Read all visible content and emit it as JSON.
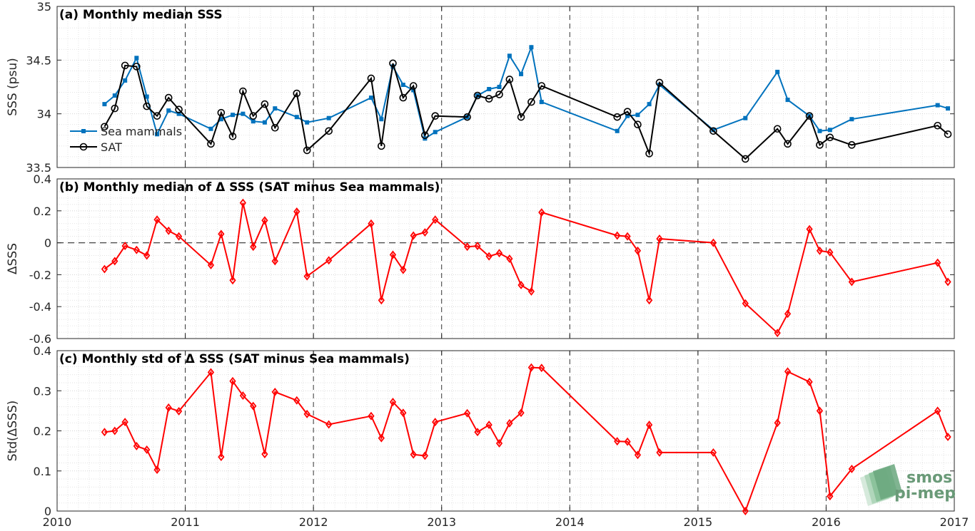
{
  "chart_data": [
    {
      "type": "line",
      "title": "(a) Monthly median SSS",
      "ylabel": "SSS (psu)",
      "xlabel": "",
      "xlim": [
        2010,
        2017
      ],
      "ylim": [
        33.5,
        35
      ],
      "yticks": [
        33.5,
        34,
        34.5,
        35
      ],
      "ytick_labels": [
        "33.5",
        "34",
        "34.5",
        "35"
      ],
      "grid": true,
      "legend_position": "left",
      "series": [
        {
          "name": "Sea mammals",
          "color": "#0072BD",
          "marker": "square",
          "x": [
            2010.37,
            2010.45,
            2010.53,
            2010.62,
            2010.7,
            2010.78,
            2010.87,
            2010.95,
            2011.2,
            2011.28,
            2011.37,
            2011.45,
            2011.53,
            2011.62,
            2011.7,
            2011.87,
            2011.95,
            2012.12,
            2012.45,
            2012.53,
            2012.62,
            2012.7,
            2012.78,
            2012.87,
            2012.95,
            2013.2,
            2013.28,
            2013.37,
            2013.45,
            2013.53,
            2013.62,
            2013.7,
            2013.78,
            2014.37,
            2014.45,
            2014.53,
            2014.62,
            2014.7,
            2015.12,
            2015.37,
            2015.62,
            2015.7,
            2015.87,
            2015.95,
            2016.03,
            2016.2,
            2016.87,
            2016.95
          ],
          "y": [
            34.09,
            34.17,
            34.31,
            34.52,
            34.16,
            33.81,
            34.03,
            34.0,
            33.86,
            33.95,
            33.99,
            34.0,
            33.93,
            33.92,
            34.05,
            33.97,
            33.92,
            33.96,
            34.15,
            33.95,
            34.44,
            34.27,
            34.22,
            33.77,
            33.83,
            33.97,
            34.17,
            34.23,
            34.25,
            34.54,
            34.37,
            34.62,
            34.11,
            33.84,
            33.98,
            33.99,
            34.09,
            34.27,
            33.85,
            33.96,
            34.39,
            34.13,
            33.98,
            33.84,
            33.85,
            33.95,
            34.08,
            34.05
          ]
        },
        {
          "name": "SAT",
          "color": "#000000",
          "marker": "circle",
          "x": [
            2010.37,
            2010.45,
            2010.53,
            2010.62,
            2010.7,
            2010.78,
            2010.87,
            2010.95,
            2011.2,
            2011.28,
            2011.37,
            2011.45,
            2011.53,
            2011.62,
            2011.7,
            2011.87,
            2011.95,
            2012.12,
            2012.45,
            2012.53,
            2012.62,
            2012.7,
            2012.78,
            2012.87,
            2012.95,
            2013.2,
            2013.28,
            2013.37,
            2013.45,
            2013.53,
            2013.62,
            2013.7,
            2013.78,
            2014.37,
            2014.45,
            2014.53,
            2014.62,
            2014.7,
            2015.12,
            2015.37,
            2015.62,
            2015.7,
            2015.87,
            2015.95,
            2016.03,
            2016.2,
            2016.87,
            2016.95
          ],
          "y": [
            33.88,
            34.05,
            34.45,
            34.44,
            34.07,
            33.98,
            34.15,
            34.04,
            33.72,
            34.01,
            33.79,
            34.21,
            33.98,
            34.09,
            33.87,
            34.19,
            33.66,
            33.84,
            34.33,
            33.7,
            34.47,
            34.15,
            34.26,
            33.8,
            33.98,
            33.97,
            34.17,
            34.14,
            34.18,
            34.32,
            33.97,
            34.11,
            34.26,
            33.97,
            34.02,
            33.9,
            33.63,
            34.29,
            33.84,
            33.58,
            33.86,
            33.72,
            33.98,
            33.71,
            33.78,
            33.71,
            33.89,
            33.81
          ]
        }
      ]
    },
    {
      "type": "line",
      "title": "(b) Monthly median of Δ SSS (SAT minus Sea mammals)",
      "ylabel": "ΔSSS",
      "xlabel": "",
      "xlim": [
        2010,
        2017
      ],
      "ylim": [
        -0.6,
        0.4
      ],
      "yticks": [
        -0.6,
        -0.4,
        -0.2,
        0,
        0.2,
        0.4
      ],
      "ytick_labels": [
        "-0.6",
        "-0.4",
        "-0.2",
        "0",
        "0.2",
        "0.4"
      ],
      "reference_line_y": 0,
      "grid": true,
      "series": [
        {
          "name": "",
          "color": "#FF0000",
          "marker": "diamond",
          "x": [
            2010.37,
            2010.45,
            2010.53,
            2010.62,
            2010.7,
            2010.78,
            2010.87,
            2010.95,
            2011.2,
            2011.28,
            2011.37,
            2011.45,
            2011.53,
            2011.62,
            2011.7,
            2011.87,
            2011.95,
            2012.12,
            2012.45,
            2012.53,
            2012.62,
            2012.7,
            2012.78,
            2012.87,
            2012.95,
            2013.2,
            2013.28,
            2013.37,
            2013.45,
            2013.53,
            2013.62,
            2013.7,
            2013.78,
            2014.37,
            2014.45,
            2014.53,
            2014.62,
            2014.7,
            2015.12,
            2015.37,
            2015.62,
            2015.7,
            2015.87,
            2015.95,
            2016.03,
            2016.2,
            2016.87,
            2016.95
          ],
          "y": [
            -0.165,
            -0.115,
            -0.02,
            -0.045,
            -0.08,
            0.145,
            0.075,
            0.04,
            -0.14,
            0.055,
            -0.235,
            0.25,
            -0.025,
            0.14,
            -0.115,
            0.195,
            -0.21,
            -0.11,
            0.12,
            -0.36,
            -0.075,
            -0.17,
            0.045,
            0.065,
            0.145,
            -0.025,
            -0.02,
            -0.085,
            -0.065,
            -0.1,
            -0.265,
            -0.305,
            0.19,
            0.045,
            0.04,
            -0.05,
            -0.36,
            0.025,
            0.0,
            -0.38,
            -0.565,
            -0.445,
            0.085,
            -0.05,
            -0.06,
            -0.245,
            -0.125,
            -0.245
          ]
        }
      ]
    },
    {
      "type": "line",
      "title": "(c) Monthly std of Δ SSS (SAT minus Sea mammals)",
      "ylabel": "Std(ΔSSS)",
      "xlabel": "",
      "xlim": [
        2010,
        2017
      ],
      "ylim": [
        0,
        0.4
      ],
      "yticks": [
        0,
        0.1,
        0.2,
        0.3,
        0.4
      ],
      "ytick_labels": [
        "0",
        "0.1",
        "0.2",
        "0.3",
        "0.4"
      ],
      "xticks": [
        2010,
        2011,
        2012,
        2013,
        2014,
        2015,
        2016,
        2017
      ],
      "xtick_labels": [
        "2010",
        "2011",
        "2012",
        "2013",
        "2014",
        "2015",
        "2016",
        "2017"
      ],
      "grid": true,
      "series": [
        {
          "name": "",
          "color": "#FF0000",
          "marker": "diamond",
          "x": [
            2010.37,
            2010.45,
            2010.53,
            2010.62,
            2010.7,
            2010.78,
            2010.87,
            2010.95,
            2011.2,
            2011.28,
            2011.37,
            2011.45,
            2011.53,
            2011.62,
            2011.7,
            2011.87,
            2011.95,
            2012.12,
            2012.45,
            2012.53,
            2012.62,
            2012.7,
            2012.78,
            2012.87,
            2012.95,
            2013.2,
            2013.28,
            2013.37,
            2013.45,
            2013.53,
            2013.62,
            2013.7,
            2013.78,
            2014.37,
            2014.45,
            2014.53,
            2014.62,
            2014.7,
            2015.12,
            2015.37,
            2015.62,
            2015.7,
            2015.87,
            2015.95,
            2016.03,
            2016.2,
            2016.87,
            2016.95
          ],
          "y": [
            0.197,
            0.2,
            0.222,
            0.162,
            0.153,
            0.103,
            0.258,
            0.249,
            0.346,
            0.135,
            0.324,
            0.288,
            0.262,
            0.142,
            0.297,
            0.276,
            0.242,
            0.216,
            0.237,
            0.182,
            0.272,
            0.245,
            0.141,
            0.138,
            0.222,
            0.244,
            0.197,
            0.215,
            0.169,
            0.219,
            0.245,
            0.358,
            0.357,
            0.174,
            0.173,
            0.14,
            0.215,
            0.146,
            0.146,
            0.0,
            0.22,
            0.348,
            0.322,
            0.25,
            0.037,
            0.105,
            0.25,
            0.185
          ]
        }
      ]
    }
  ],
  "watermark": {
    "line1": "smos",
    "line2": "pi-mep"
  }
}
